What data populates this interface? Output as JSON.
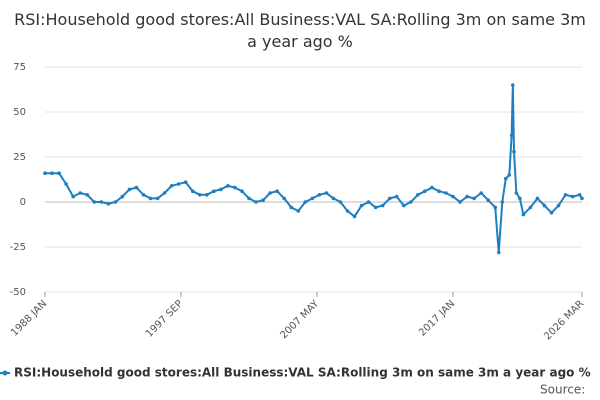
{
  "chart_data": {
    "type": "line",
    "title": "RSI:Household good stores:All Business:VAL SA:Rolling 3m on same 3m a year ago %",
    "y_label": "%",
    "source": "Source:",
    "grid": true,
    "xlim": [
      1988,
      2026.1667
    ],
    "xticks": [
      {
        "value": 1988,
        "label": "1988 JAN"
      },
      {
        "value": 1997.6667,
        "label": "1997 SEP"
      },
      {
        "value": 2007.3333,
        "label": "2007 MAY"
      },
      {
        "value": 2017,
        "label": "2017 JAN"
      },
      {
        "value": 2026.1667,
        "label": "2026 MAR"
      }
    ],
    "ylim": [
      -50,
      75
    ],
    "yticks": [
      -50,
      -25,
      0,
      25,
      50,
      75
    ],
    "series": [
      {
        "name": "RSI:Household good stores:All Business:VAL SA:Rolling 3m on same 3m a year ago %",
        "color": "#1f7ec0",
        "x": [
          1988,
          1988.5,
          1989,
          1989.5,
          1990,
          1990.5,
          1991,
          1991.5,
          1992,
          1992.5,
          1993,
          1993.5,
          1994,
          1994.5,
          1995,
          1995.5,
          1996,
          1996.5,
          1997,
          1997.5,
          1998,
          1998.5,
          1999,
          1999.5,
          2000,
          2000.5,
          2001,
          2001.5,
          2002,
          2002.5,
          2003,
          2003.5,
          2004,
          2004.5,
          2005,
          2005.5,
          2006,
          2006.5,
          2007,
          2007.5,
          2008,
          2008.5,
          2009,
          2009.5,
          2010,
          2010.5,
          2011,
          2011.5,
          2012,
          2012.5,
          2013,
          2013.5,
          2014,
          2014.5,
          2015,
          2015.5,
          2016,
          2016.5,
          2017,
          2017.5,
          2018,
          2018.5,
          2019,
          2019.5,
          2020,
          2020.25,
          2020.5,
          2020.75,
          2021,
          2021.1667,
          2021.25,
          2021.3333,
          2021.5,
          2021.75,
          2022,
          2022.5,
          2023,
          2023.5,
          2024,
          2024.5,
          2025,
          2025.5,
          2026,
          2026.1667
        ],
        "values": [
          16,
          16,
          16,
          10,
          3,
          5,
          4,
          0,
          0,
          -1,
          0,
          3,
          7,
          8,
          4,
          2,
          2,
          5,
          9,
          10,
          11,
          6,
          4,
          4,
          6,
          7,
          9,
          8,
          6,
          2,
          0,
          1,
          5,
          6,
          2,
          -3,
          -5,
          0,
          2,
          4,
          5,
          2,
          0,
          -5,
          -8,
          -2,
          0,
          -3,
          -2,
          2,
          3,
          -2,
          0,
          4,
          6,
          8,
          6,
          5,
          3,
          0,
          3,
          2,
          5,
          1,
          -3,
          -28,
          0,
          13,
          15,
          37,
          65,
          28,
          5,
          2,
          -7,
          -3,
          2,
          -2,
          -6,
          -2,
          4,
          3,
          4,
          2
        ]
      }
    ]
  }
}
